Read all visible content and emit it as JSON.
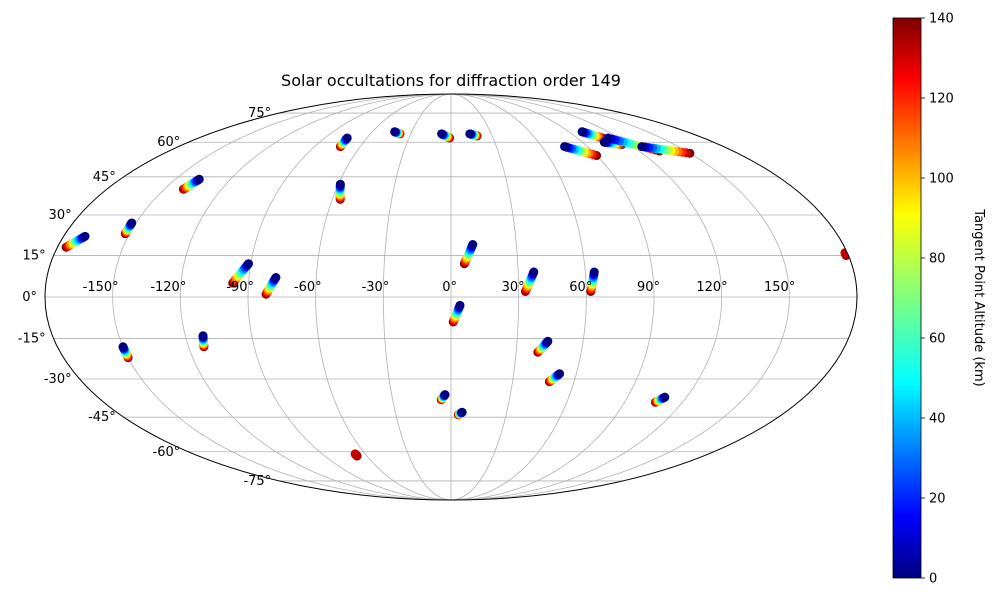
{
  "chart_data": {
    "type": "scatter",
    "projection": "mollweide",
    "title": "Solar occultations for diffraction order 149",
    "xlabel": "",
    "ylabel": "",
    "colorbar": {
      "label": "Tangent Point Altitude (km)",
      "colormap": "jet",
      "range": [
        0,
        140
      ],
      "ticks": [
        "0",
        "20",
        "40",
        "60",
        "80",
        "100",
        "120",
        "140"
      ]
    },
    "grid": true,
    "x_ticks": [
      {
        "lon": -150,
        "label": "-150°"
      },
      {
        "lon": -120,
        "label": "-120°"
      },
      {
        "lon": -90,
        "label": "-90°"
      },
      {
        "lon": -60,
        "label": "-60°"
      },
      {
        "lon": -30,
        "label": "-30°"
      },
      {
        "lon": 0,
        "label": "0°"
      },
      {
        "lon": 30,
        "label": "30°"
      },
      {
        "lon": 60,
        "label": "60°"
      },
      {
        "lon": 90,
        "label": "90°"
      },
      {
        "lon": 120,
        "label": "120°"
      },
      {
        "lon": 150,
        "label": "150°"
      }
    ],
    "y_ticks": [
      {
        "lat": 75,
        "label": "75°"
      },
      {
        "lat": 60,
        "label": "60°"
      },
      {
        "lat": 45,
        "label": "45°"
      },
      {
        "lat": 30,
        "label": "30°"
      },
      {
        "lat": 15,
        "label": "15°"
      },
      {
        "lat": 0,
        "label": "0°"
      },
      {
        "lat": -15,
        "label": "-15°"
      },
      {
        "lat": -30,
        "label": "-30°"
      },
      {
        "lat": -45,
        "label": "-45°"
      },
      {
        "lat": -60,
        "label": "-60°"
      },
      {
        "lat": -75,
        "label": "-75°"
      }
    ],
    "tracks": [
      {
        "start": [
          -176,
          18
        ],
        "end": [
          -170,
          22
        ],
        "alt_start": 140,
        "alt_end": 0
      },
      {
        "start": [
          -152,
          23
        ],
        "end": [
          -152,
          27
        ],
        "alt_start": 140,
        "alt_end": 0
      },
      {
        "start": [
          -150,
          -22
        ],
        "end": [
          -150,
          -18
        ],
        "alt_start": 140,
        "alt_end": 0
      },
      {
        "start": [
          -140,
          40
        ],
        "end": [
          -137,
          44
        ],
        "alt_start": 140,
        "alt_end": 0
      },
      {
        "start": [
          -113,
          -18
        ],
        "end": [
          -112,
          -14
        ],
        "alt_start": 140,
        "alt_end": 0
      },
      {
        "start": [
          -97,
          5
        ],
        "end": [
          -91,
          12
        ],
        "alt_start": 140,
        "alt_end": 0
      },
      {
        "start": [
          -82,
          1
        ],
        "end": [
          -78,
          7
        ],
        "alt_start": 140,
        "alt_end": 0
      },
      {
        "start": [
          -73,
          58
        ],
        "end": [
          -74,
          62
        ],
        "alt_start": 140,
        "alt_end": 0
      },
      {
        "start": [
          -67,
          -62
        ],
        "end": [
          -67,
          -61
        ],
        "alt_start": 140,
        "alt_end": 130
      },
      {
        "start": [
          -56,
          36
        ],
        "end": [
          -59,
          42
        ],
        "alt_start": 140,
        "alt_end": 0
      },
      {
        "start": [
          -38,
          64
        ],
        "end": [
          -43,
          65
        ],
        "alt_start": 140,
        "alt_end": 0
      },
      {
        "start": [
          -5,
          -38
        ],
        "end": [
          -3,
          -36
        ],
        "alt_start": 140,
        "alt_end": 0
      },
      {
        "start": [
          -1,
          62
        ],
        "end": [
          -7,
          64
        ],
        "alt_start": 140,
        "alt_end": 0
      },
      {
        "start": [
          1,
          -9
        ],
        "end": [
          4,
          -3
        ],
        "alt_start": 140,
        "alt_end": 0
      },
      {
        "start": [
          4,
          -44
        ],
        "end": [
          6,
          -43
        ],
        "alt_start": 140,
        "alt_end": 0
      },
      {
        "start": [
          6,
          12
        ],
        "end": [
          10,
          19
        ],
        "alt_start": 140,
        "alt_end": 0
      },
      {
        "start": [
          19,
          63
        ],
        "end": [
          14,
          64
        ],
        "alt_start": 140,
        "alt_end": 0
      },
      {
        "start": [
          33,
          2
        ],
        "end": [
          37,
          9
        ],
        "alt_start": 140,
        "alt_end": 0
      },
      {
        "start": [
          40,
          -20
        ],
        "end": [
          44,
          -16
        ],
        "alt_start": 140,
        "alt_end": 0
      },
      {
        "start": [
          48,
          -31
        ],
        "end": [
          52,
          -28
        ],
        "alt_start": 140,
        "alt_end": 0
      },
      {
        "start": [
          62,
          2
        ],
        "end": [
          64,
          9
        ],
        "alt_start": 140,
        "alt_end": 0
      },
      {
        "start": [
          90,
          54
        ],
        "end": [
          75,
          58
        ],
        "alt_start": 140,
        "alt_end": 0
      },
      {
        "start": [
          106,
          -39
        ],
        "end": [
          109,
          -37
        ],
        "alt_start": 140,
        "alt_end": 0
      },
      {
        "start": [
          108,
          62
        ],
        "end": [
          100,
          65
        ],
        "alt_start": 140,
        "alt_end": 0
      },
      {
        "start": [
          115,
          59
        ],
        "end": [
          105,
          60
        ],
        "alt_start": 140,
        "alt_end": 0
      },
      {
        "start": [
          133,
          56
        ],
        "end": [
          112,
          62
        ],
        "alt_start": 140,
        "alt_end": 0
      },
      {
        "start": [
          150,
          55
        ],
        "end": [
          126,
          58
        ],
        "alt_start": 140,
        "alt_end": 0
      },
      {
        "start": [
          179,
          15
        ],
        "end": [
          179,
          16
        ],
        "alt_start": 140,
        "alt_end": 130
      }
    ]
  }
}
